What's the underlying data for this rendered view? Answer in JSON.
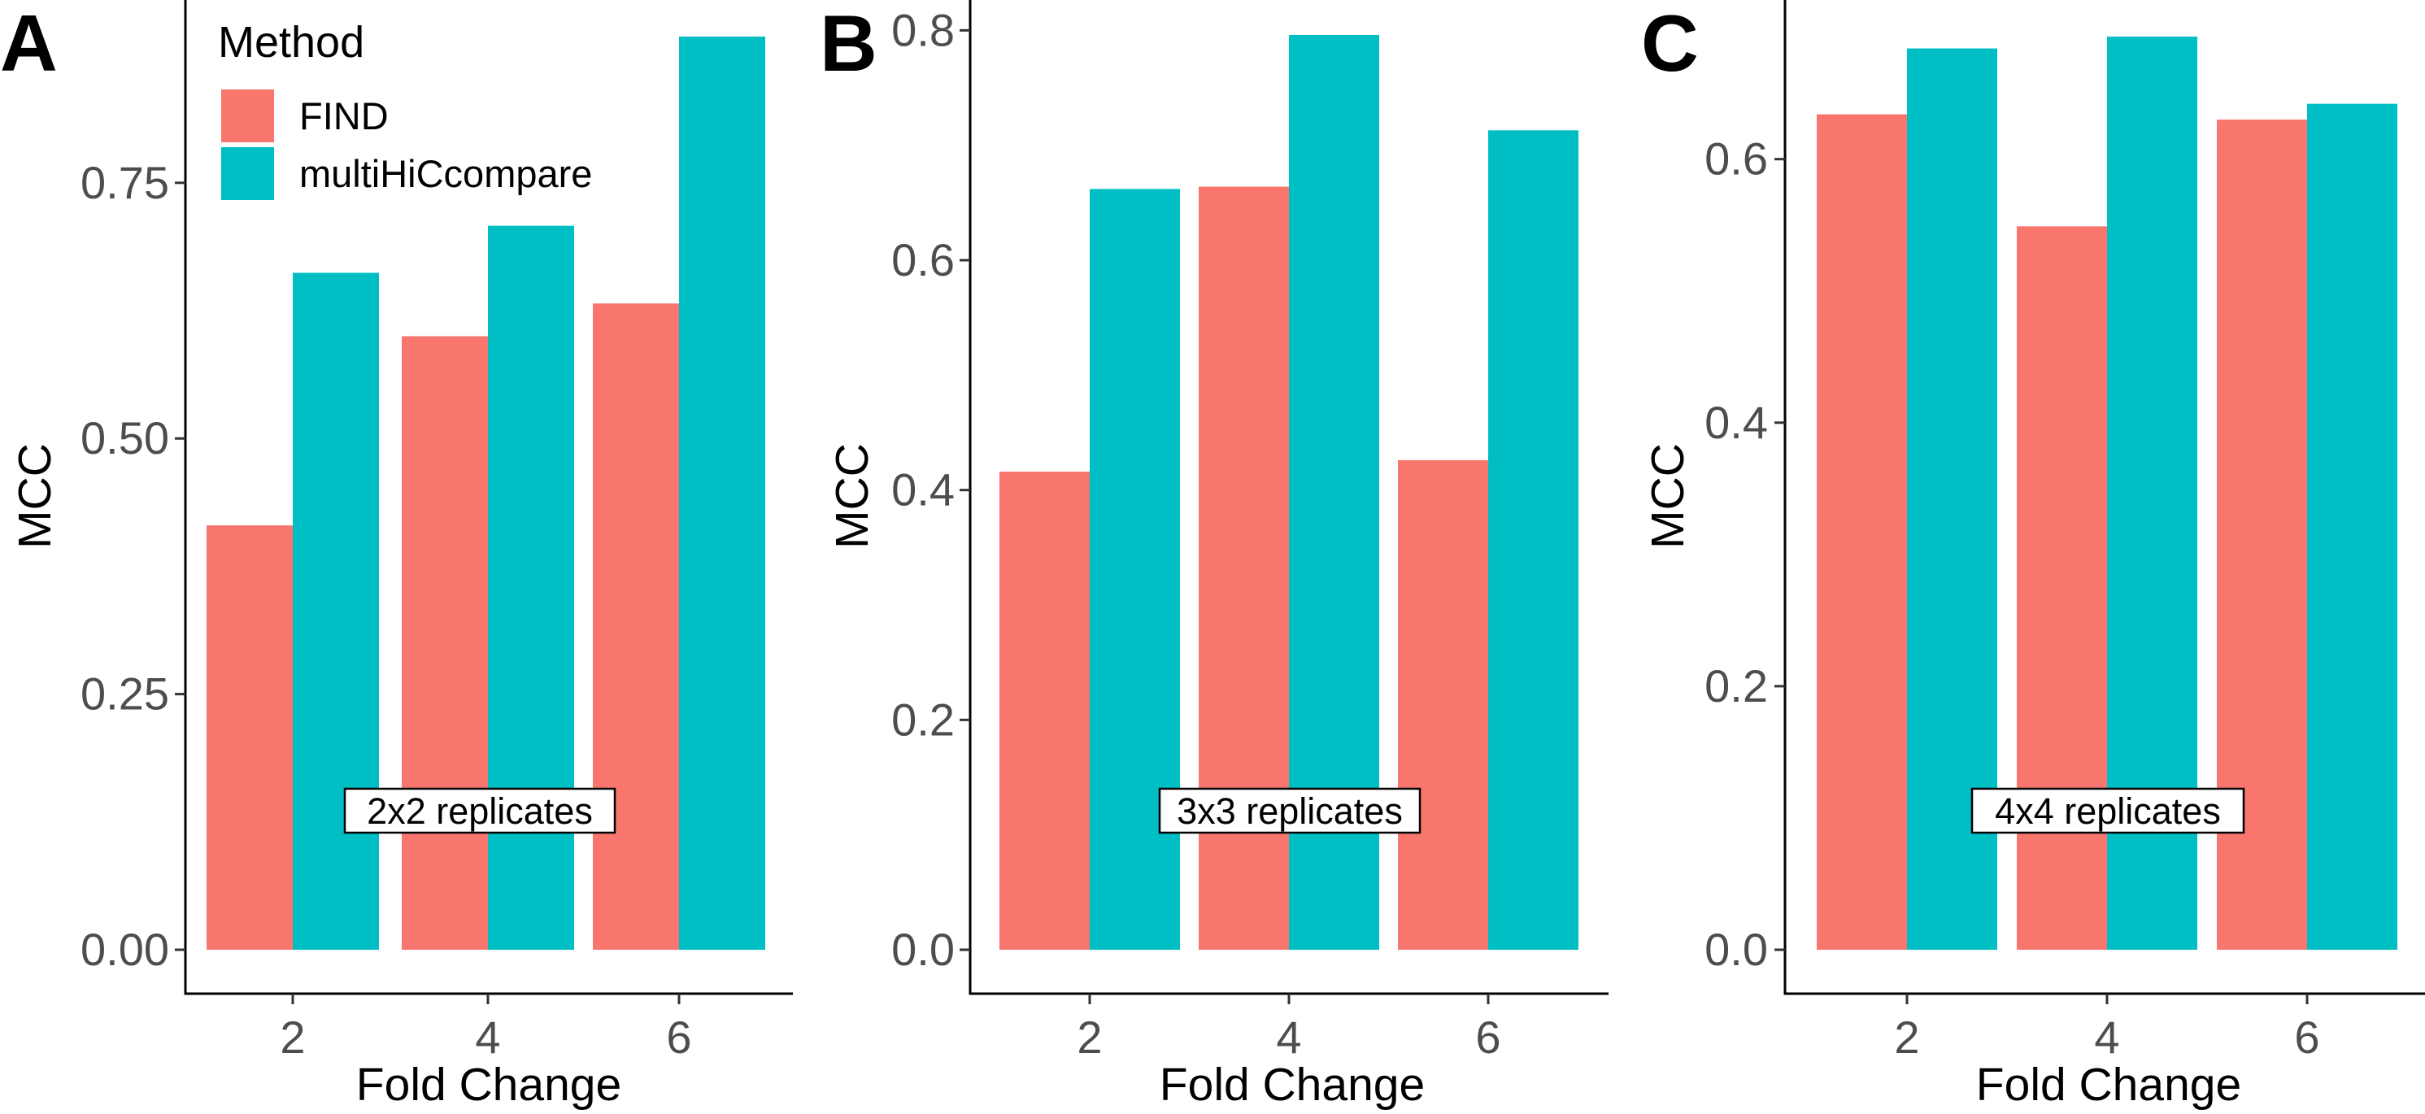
{
  "legend": {
    "title": "Method",
    "items": [
      {
        "label": "FIND",
        "color": "#F8766D"
      },
      {
        "label": "multiHiCcompare",
        "color": "#00BFC4"
      }
    ]
  },
  "chart_data": [
    {
      "type": "bar",
      "panel_label": "A",
      "categories": [
        "2",
        "4",
        "6"
      ],
      "series": [
        {
          "name": "FIND",
          "values": [
            0.415,
            0.6,
            0.632
          ],
          "color": "#F8766D"
        },
        {
          "name": "multiHiCcompare",
          "values": [
            0.662,
            0.708,
            0.893
          ],
          "color": "#00BFC4"
        }
      ],
      "xlabel": "Fold Change",
      "ylabel": "MCC",
      "ylim": [
        0,
        0.893
      ],
      "yticks": [
        0,
        0.25,
        0.5,
        0.75
      ],
      "ytick_labels": [
        "0.00",
        "0.25",
        "0.50",
        "0.75"
      ],
      "annotation": "2x2 replicates",
      "grid": false
    },
    {
      "type": "bar",
      "panel_label": "B",
      "categories": [
        "2",
        "4",
        "6"
      ],
      "series": [
        {
          "name": "FIND",
          "values": [
            0.416,
            0.664,
            0.426
          ],
          "color": "#F8766D"
        },
        {
          "name": "multiHiCcompare",
          "values": [
            0.662,
            0.796,
            0.713
          ],
          "color": "#00BFC4"
        }
      ],
      "xlabel": "Fold Change",
      "ylabel": "MCC",
      "ylim": [
        0,
        0.796
      ],
      "yticks": [
        0,
        0.2,
        0.4,
        0.6,
        0.8
      ],
      "ytick_labels": [
        "0.0",
        "0.2",
        "0.4",
        "0.6",
        "0.8"
      ],
      "annotation": "3x3 replicates",
      "grid": false
    },
    {
      "type": "bar",
      "panel_label": "C",
      "categories": [
        "2",
        "4",
        "6"
      ],
      "series": [
        {
          "name": "FIND",
          "values": [
            0.634,
            0.549,
            0.63
          ],
          "color": "#F8766D"
        },
        {
          "name": "multiHiCcompare",
          "values": [
            0.684,
            0.693,
            0.642
          ],
          "color": "#00BFC4"
        }
      ],
      "xlabel": "Fold Change",
      "ylabel": "MCC",
      "ylim": [
        0,
        0.693
      ],
      "yticks": [
        0,
        0.2,
        0.4,
        0.6
      ],
      "ytick_labels": [
        "0.0",
        "0.2",
        "0.4",
        "0.6"
      ],
      "annotation": "4x4 replicates",
      "grid": false
    }
  ]
}
